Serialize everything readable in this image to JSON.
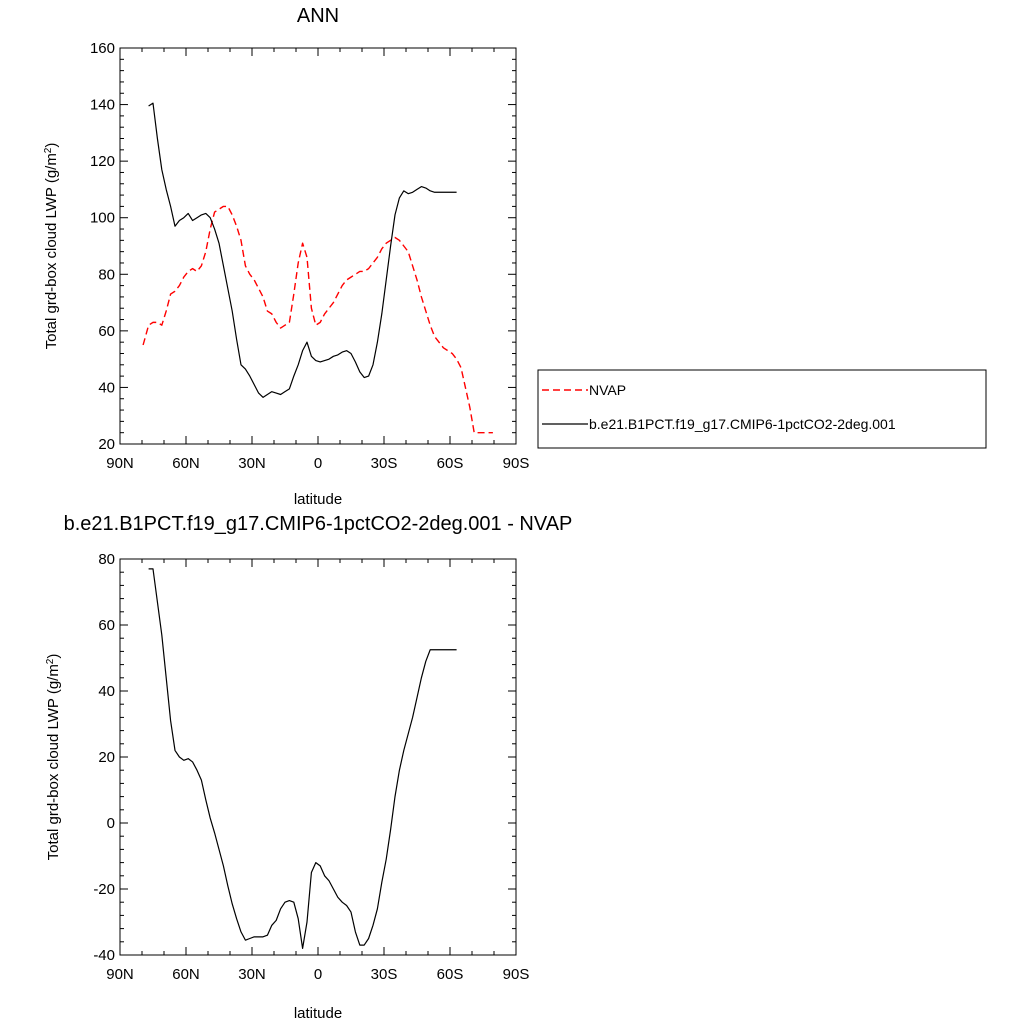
{
  "chart_data": [
    {
      "type": "line",
      "title": "ANN",
      "xlabel": "latitude",
      "ylabel": "Total grd-box cloud LWP (g/m²)",
      "ylabel_main": "Total grd-box cloud LWP (g/m",
      "ylabel_sup": "2",
      "ylabel_tail": ")",
      "xlim": [
        90,
        -90
      ],
      "ylim": [
        20,
        160
      ],
      "xticks": [
        90,
        60,
        30,
        0,
        -30,
        -60,
        -90
      ],
      "xtick_labels": [
        "90N",
        "60N",
        "30N",
        "0",
        "30S",
        "60S",
        "90S"
      ],
      "yticks": [
        20,
        40,
        60,
        80,
        100,
        120,
        140,
        160
      ],
      "ytick_labels": [
        "20",
        "40",
        "60",
        "80",
        "100",
        "120",
        "140",
        "160"
      ],
      "grid": false,
      "legend_position": "right",
      "series": [
        {
          "name": "NVAP",
          "color": "#ff0000",
          "style": "dashed",
          "x": [
            79.5,
            77,
            75,
            73,
            71,
            69,
            67,
            65,
            63,
            61,
            59,
            57,
            55,
            53,
            51,
            49,
            47,
            45,
            43,
            41,
            39,
            37,
            35,
            33,
            31,
            29,
            27,
            25,
            23,
            21,
            19,
            17,
            15,
            13,
            11,
            9,
            7,
            5,
            3,
            1,
            -1,
            -3,
            -5,
            -7,
            -9,
            -11,
            -13,
            -15,
            -17,
            -19,
            -21,
            -23,
            -25,
            -27,
            -29,
            -31,
            -33,
            -35,
            -37,
            -39,
            -41,
            -43,
            -45,
            -47,
            -49,
            -51,
            -53,
            -55,
            -57,
            -59,
            -61,
            -63,
            -65,
            -67,
            -69,
            -71,
            -73,
            -75,
            -77,
            -79.5
          ],
          "y": [
            55,
            62,
            63,
            63,
            62,
            67,
            73,
            74,
            76,
            79,
            81,
            82,
            81,
            83,
            88,
            96,
            102,
            103,
            104,
            104,
            101,
            97,
            92,
            83,
            80,
            78,
            75,
            72,
            67,
            66,
            63,
            61,
            62,
            63,
            73,
            84,
            91,
            86,
            68,
            62,
            63,
            66,
            68,
            70,
            73,
            76,
            78,
            79,
            80,
            81,
            81,
            82,
            84,
            86,
            89,
            91,
            92,
            93,
            92,
            90,
            88,
            83,
            78,
            72,
            67,
            62,
            58,
            56,
            54,
            53,
            52,
            50,
            47,
            40,
            33,
            24,
            24,
            24,
            24,
            24
          ]
        },
        {
          "name": "b.e21.B1PCT.f19_g17.CMIP6-1pctCO2-2deg.001",
          "color": "#000000",
          "style": "solid",
          "x": [
            77,
            75,
            73,
            71,
            69,
            67,
            65,
            63,
            61,
            59,
            57,
            55,
            53,
            51,
            49,
            47,
            45,
            43,
            41,
            39,
            37,
            35,
            33,
            31,
            29,
            27,
            25,
            23,
            21,
            19,
            17,
            15,
            13,
            11,
            9,
            7,
            5,
            3,
            1,
            -1,
            -3,
            -5,
            -7,
            -9,
            -11,
            -13,
            -15,
            -17,
            -19,
            -21,
            -23,
            -25,
            -27,
            -29,
            -31,
            -33,
            -35,
            -37,
            -39,
            -41,
            -43,
            -45,
            -47,
            -49,
            -51,
            -53,
            -55,
            -57,
            -59,
            -61,
            -63
          ],
          "y": [
            139.5,
            140.5,
            128,
            117,
            110,
            104,
            97,
            99,
            100,
            101.5,
            99,
            100,
            101,
            101.5,
            100,
            96,
            91,
            83,
            75,
            67,
            57,
            48,
            46.5,
            44,
            41,
            38,
            36.5,
            37.5,
            38.5,
            38,
            37.5,
            38.5,
            39.5,
            44,
            48,
            53,
            56,
            51,
            49.5,
            49,
            49.5,
            50,
            51,
            51.5,
            52.5,
            53,
            52,
            49,
            45.5,
            43.5,
            44,
            48,
            56,
            66,
            78,
            90,
            101,
            107,
            109.5,
            108.5,
            109,
            110,
            111,
            110.5,
            109.5,
            109,
            109,
            109,
            109,
            109,
            109
          ]
        }
      ]
    },
    {
      "type": "line",
      "title": "b.e21.B1PCT.f19_g17.CMIP6-1pctCO2-2deg.001 - NVAP",
      "xlabel": "latitude",
      "ylabel": "Total grd-box cloud LWP (g/m²)",
      "ylabel_main": "Total grd-box cloud LWP (g/m",
      "ylabel_sup": "2",
      "ylabel_tail": ")",
      "xlim": [
        90,
        -90
      ],
      "ylim": [
        -40,
        80
      ],
      "xticks": [
        90,
        60,
        30,
        0,
        -30,
        -60,
        -90
      ],
      "xtick_labels": [
        "90N",
        "60N",
        "30N",
        "0",
        "30S",
        "60S",
        "90S"
      ],
      "yticks": [
        -40,
        -20,
        0,
        20,
        40,
        60,
        80
      ],
      "ytick_labels": [
        "-40",
        "-20",
        "0",
        "20",
        "40",
        "60",
        "80"
      ],
      "grid": false,
      "series": [
        {
          "color": "#000000",
          "style": "solid",
          "x": [
            77,
            75,
            73,
            71,
            69,
            67,
            65,
            63,
            61,
            59,
            57,
            55,
            53,
            51,
            49,
            47,
            45,
            43,
            41,
            39,
            37,
            35,
            33,
            31,
            29,
            27,
            25,
            23,
            21,
            19,
            17,
            15,
            13,
            11,
            9,
            7,
            5,
            3,
            1,
            -1,
            -3,
            -5,
            -7,
            -9,
            -11,
            -13,
            -15,
            -17,
            -19,
            -21,
            -23,
            -25,
            -27,
            -29,
            -31,
            -33,
            -35,
            -37,
            -39,
            -41,
            -43,
            -45,
            -47,
            -49,
            -51,
            -53,
            -55,
            -57,
            -59,
            -61,
            -63
          ],
          "y": [
            77,
            77,
            67,
            57,
            44,
            31,
            22,
            20,
            19,
            19.5,
            18.5,
            16,
            13,
            7,
            1.5,
            -3,
            -8,
            -13,
            -19,
            -24.5,
            -29,
            -33,
            -35.5,
            -35,
            -34.5,
            -34.5,
            -34.5,
            -34,
            -31,
            -29.5,
            -26,
            -24,
            -23.5,
            -24,
            -29,
            -38,
            -30,
            -15,
            -12,
            -13,
            -16,
            -17.5,
            -20,
            -22.5,
            -24,
            -25,
            -27,
            -33,
            -37,
            -37,
            -35,
            -31,
            -26,
            -18,
            -11,
            -2,
            8,
            16,
            22,
            27,
            32,
            38,
            44,
            49,
            52.5,
            52.5,
            52.5,
            52.5,
            52.5,
            52.5,
            52.5
          ]
        }
      ]
    }
  ]
}
